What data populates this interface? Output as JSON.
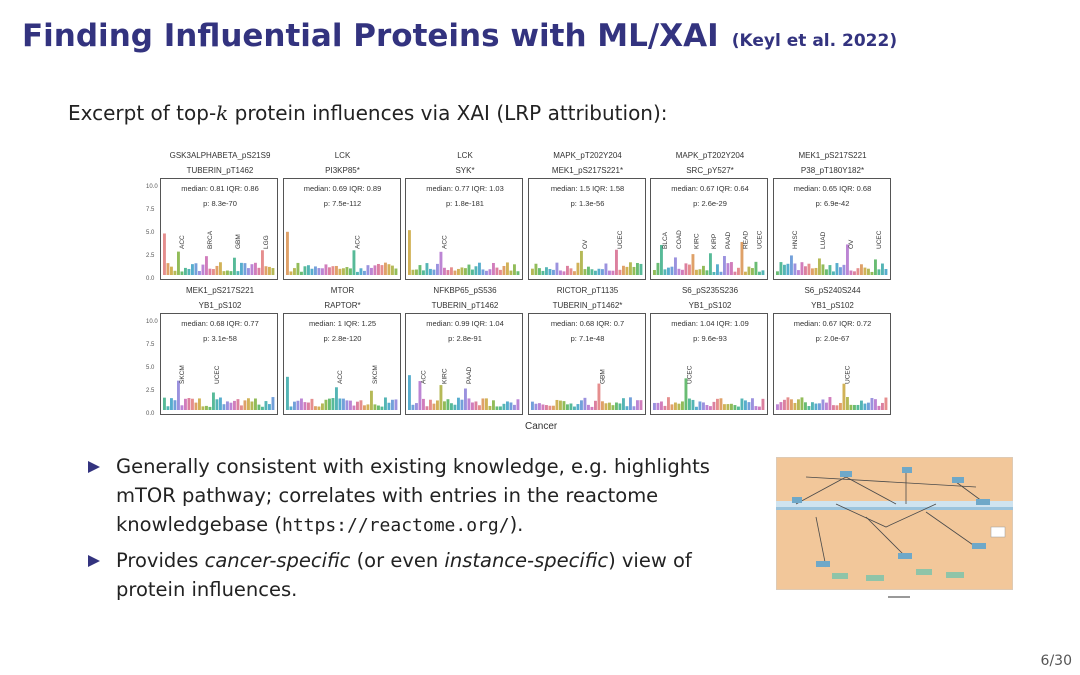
{
  "slide": {
    "title": "Finding Influential Proteins with ML/XAI",
    "citation": "(Keyl et al. 2022)",
    "intro_before": "Excerpt of top-",
    "intro_k": "k",
    "intro_after": " protein influences via XAI (LRP attribution):",
    "page": "6/30"
  },
  "figure": {
    "xlabel": "Cancer",
    "yticks": [
      "10.0",
      "7.5",
      "5.0",
      "2.5",
      "0.0"
    ],
    "panels": [
      {
        "h1": "GSK3ALPHABETA_pS21S9",
        "h2": "TUBERIN_pT1462",
        "median": "median: 0.81 IQR: 0.86",
        "p": "p: 8.3e-70",
        "labels": [
          "ACC",
          "BRCA",
          "GBM",
          "LGG"
        ],
        "color_start": 0
      },
      {
        "h1": "LCK",
        "h2": "PI3KP85*",
        "median": "median: 0.69 IQR: 0.89",
        "p": "p: 7.5e-112",
        "labels": [
          "ACC"
        ],
        "color_start": 1
      },
      {
        "h1": "LCK",
        "h2": "SYK*",
        "median": "median: 0.77 IQR: 1.03",
        "p": "p: 1.8e-181",
        "labels": [
          "ACC"
        ],
        "color_start": 2
      },
      {
        "h1": "MAPK_pT202Y204",
        "h2": "MEK1_pS217S221*",
        "median": "median: 1.5 IQR: 1.58",
        "p": "p: 1.3e-56",
        "labels": [
          "OV",
          "UCEC"
        ],
        "color_start": 3
      },
      {
        "h1": "MAPK_pT202Y204",
        "h2": "SRC_pY527*",
        "median": "median: 0.67 IQR: 0.64",
        "p": "p: 2.6e-29",
        "labels": [
          "BLCA",
          "COAD",
          "KIRC",
          "KIRP",
          "PAAD",
          "READ",
          "UCEC"
        ],
        "color_start": 4
      },
      {
        "h1": "MEK1_pS217S221",
        "h2": "P38_pT180Y182*",
        "median": "median: 0.65 IQR: 0.68",
        "p": "p: 6.9e-42",
        "labels": [
          "HNSC",
          "LUAD",
          "OV",
          "UCEC"
        ],
        "color_start": 5
      },
      {
        "h1": "MEK1_pS217S221",
        "h2": "YB1_pS102",
        "median": "median: 0.68 IQR: 0.77",
        "p": "p: 3.1e-58",
        "labels": [
          "SKCM",
          "UCEC"
        ],
        "color_start": 6
      },
      {
        "h1": "MTOR",
        "h2": "RAPTOR*",
        "median": "median: 1 IQR: 1.25",
        "p": "p: 2.8e-120",
        "labels": [
          "ACC",
          "SKCM"
        ],
        "color_start": 7
      },
      {
        "h1": "NFKBP65_pS536",
        "h2": "TUBERIN_pT1462",
        "median": "median: 0.99 IQR: 1.04",
        "p": "p: 2.8e-91",
        "labels": [
          "ACC",
          "KIRC",
          "PAAD"
        ],
        "color_start": 8
      },
      {
        "h1": "RICTOR_pT1135",
        "h2": "TUBERIN_pT1462*",
        "median": "median: 0.68 IQR: 0.7",
        "p": "p: 7.1e-48",
        "labels": [
          "GBM"
        ],
        "color_start": 9
      },
      {
        "h1": "S6_pS235S236",
        "h2": "YB1_pS102",
        "median": "median: 1.04 IQR: 1.09",
        "p": "p: 9.6e-93",
        "labels": [
          "UCEC"
        ],
        "color_start": 10
      },
      {
        "h1": "S6_pS240S244",
        "h2": "YB1_pS102",
        "median": "median: 0.67 IQR: 0.72",
        "p": "p: 2.0e-67",
        "labels": [
          "UCEC"
        ],
        "color_start": 11
      }
    ]
  },
  "bullets": {
    "b1_text": "Generally consistent with existing knowledge, e.g. highlights mTOR pathway; correlates with entries in the reactome knowledgebase (",
    "b1_url": "https://reactome.org/",
    "b1_end": ").",
    "b2_pre": "Provides ",
    "b2_it1": "cancer-specific",
    "b2_mid": " (or even ",
    "b2_it2": "instance-specific",
    "b2_post": ") view of protein influences."
  },
  "colors": {
    "title": "#33337f",
    "bullet": "#33337f",
    "thumbnail_bg": "#f2c79a"
  }
}
